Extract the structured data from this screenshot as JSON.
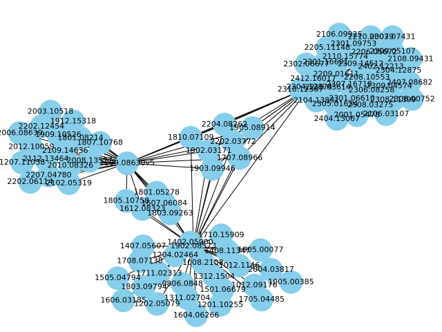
{
  "graph": {
    "node_color": "#87ceeb",
    "edge_color": "#000000",
    "hubs": [
      "2209.08630v5",
      "2304.12874",
      "1902.08573"
    ],
    "hub_links": [
      [
        "2209.08630v5",
        "2304.12874"
      ],
      [
        "2209.08630v5",
        "1902.08573"
      ],
      [
        "2304.12874",
        "1902.08573"
      ]
    ],
    "clusters": [
      {
        "hubs": [
          "2304.12874"
        ],
        "nodes": [
          "2208.10553",
          "2307.16718",
          "2309.14512",
          "2306.08258",
          "2209.01611",
          "2402.12213",
          "2301.06610",
          "2110.15774",
          "2309.04574",
          "2210.03614",
          "2206.05672",
          "2508.03275",
          "2301.16601",
          "2304.12875",
          "2305.01634",
          "2301.09753",
          "2308.11399",
          "2412.16017",
          "2309.05107",
          "2001.05478",
          "2205.11148",
          "2407.08682",
          "2104.13831",
          "2210.00079",
          "2106.03107",
          "2302.06677",
          "2108.09431",
          "2404.13067",
          "2106.09925",
          "2308.00752",
          "2310.12387",
          "2303.07431"
        ]
      },
      {
        "hubs": [
          "2304.12874",
          "1902.08573",
          "2209.08630v5"
        ],
        "nodes": [
          "2202.03772",
          "1902.03171",
          "2204.08262",
          "1707.08966",
          "1810.07109",
          "1905.08914",
          "1903.09946"
        ]
      },
      {
        "hubs": [
          "2209.08630v5"
        ],
        "nodes": [
          "2109.14636",
          "2112.13464",
          "1909.10526",
          "2010.08326",
          "2012.10059",
          "1801.08214",
          "2207.04780",
          "2202.12454",
          "2008.13527",
          "1207.11058",
          "1912.15318",
          "2102.05319",
          "2006.08639",
          "1807.10768",
          "2202.06114",
          "2003.10518"
        ]
      },
      {
        "hubs": [
          "2209.08630v5",
          "1902.08573"
        ],
        "nodes": [
          "1607.06084",
          "1612.08323",
          "1801.05278",
          "1803.09263",
          "1805.10758"
        ]
      },
      {
        "hubs": [
          "1902.08573"
        ],
        "nodes": [
          "1312.1504",
          "0806.0848",
          "1008.2108",
          "1501.06679",
          "1711.02313",
          "1012.1146",
          "1311.02704",
          "1204.02464",
          "1012.09176",
          "1803.09794",
          "1408.11347",
          "1201.10255",
          "1708.07138",
          "2004.03817",
          "1202.05079",
          "1402.05900",
          "1705.04485",
          "1505.04794",
          "1805.00077",
          "1604.06266",
          "1407.05607",
          "1005.00385",
          "1606.03185",
          "1710.15909"
        ]
      }
    ]
  }
}
